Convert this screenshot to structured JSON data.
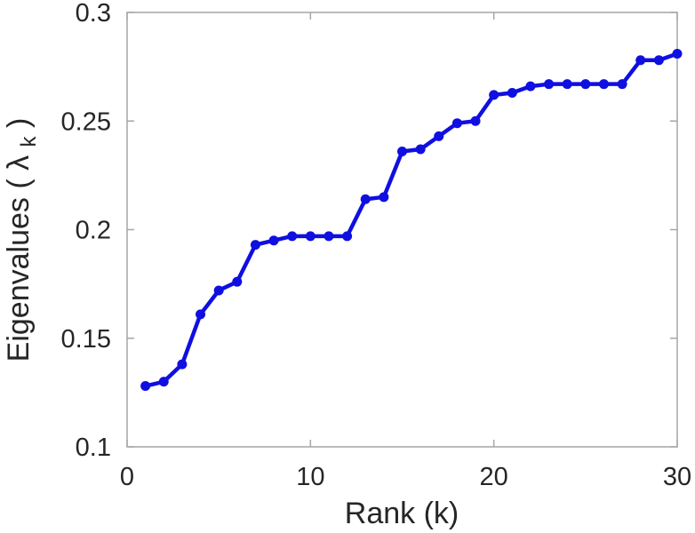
{
  "chart_data": {
    "type": "line",
    "title": "",
    "xlabel": "Rank (k)",
    "ylabel": "Eigenvalues ( λk )",
    "ylabel_prefix": "Eigenvalues ( λ",
    "ylabel_sub": "k",
    "ylabel_suffix": " )",
    "x": [
      1,
      2,
      3,
      4,
      5,
      6,
      7,
      8,
      9,
      10,
      11,
      12,
      13,
      14,
      15,
      16,
      17,
      18,
      19,
      20,
      21,
      22,
      23,
      24,
      25,
      26,
      27,
      28,
      29,
      30
    ],
    "y": [
      0.128,
      0.13,
      0.138,
      0.161,
      0.172,
      0.176,
      0.193,
      0.195,
      0.197,
      0.197,
      0.197,
      0.197,
      0.214,
      0.215,
      0.236,
      0.237,
      0.243,
      0.249,
      0.25,
      0.262,
      0.263,
      0.266,
      0.267,
      0.267,
      0.267,
      0.267,
      0.267,
      0.278,
      0.278,
      0.281
    ],
    "xlim": [
      0,
      30
    ],
    "ylim": [
      0.1,
      0.3
    ],
    "xticks": [
      0,
      10,
      20,
      30
    ],
    "xtick_labels": [
      "0",
      "10",
      "20",
      "30"
    ],
    "yticks": [
      0.1,
      0.15,
      0.2,
      0.25,
      0.3
    ],
    "ytick_labels": [
      "0.1",
      "0.15",
      "0.2",
      "0.25",
      "0.3"
    ],
    "grid": false,
    "legend": false,
    "legend_position": "none",
    "line_color": "#0f0fe1",
    "marker": "circle",
    "marker_color": "#0f0fe1",
    "axis_box_color": "#a6a6a6",
    "tick_label_color": "#262626",
    "axis_label_color": "#262626",
    "background_color": "#ffffff"
  }
}
